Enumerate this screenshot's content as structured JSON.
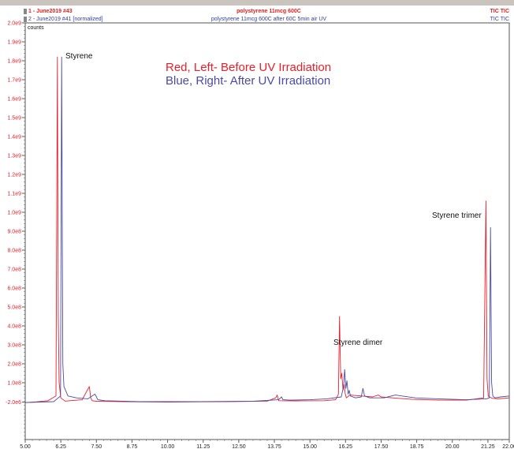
{
  "header": {
    "trace1": {
      "label": "1 - June2019 #43",
      "title": "polystyrene 11mcg 600C",
      "tag": "TIC TIC",
      "color": "#e02020"
    },
    "trace2": {
      "label": "2 - June2019 #41 [normalized]",
      "title": "polystyrene 11mcg 600C after 60C 5min air UV",
      "tag": "TIC TIC",
      "color": "#2c3f9e"
    }
  },
  "chart_data": {
    "type": "line",
    "ylabel": "counts",
    "xlim": [
      5.0,
      22.0
    ],
    "ylim": [
      -200000000,
      2000000000
    ],
    "x_ticks": [
      "5.00",
      "6.25",
      "7.50",
      "8.75",
      "10.00",
      "11.25",
      "12.50",
      "13.75",
      "15.00",
      "16.25",
      "17.50",
      "18.75",
      "20.00",
      "21.25",
      "22.00"
    ],
    "x_tick_values": [
      5.0,
      6.25,
      7.5,
      8.75,
      10.0,
      11.25,
      12.5,
      13.75,
      15.0,
      16.25,
      17.5,
      18.75,
      20.0,
      21.25,
      22.0
    ],
    "y_ticks": [
      "2.0e9",
      "1.9e9",
      "1.8e9",
      "1.7e9",
      "1.6e9",
      "1.5e9",
      "1.4e9",
      "1.3e9",
      "1.2e9",
      "1.1e9",
      "1.0e9",
      "9.0e8",
      "8.0e8",
      "7.0e8",
      "6.0e8",
      "5.0e8",
      "4.0e8",
      "3.0e8",
      "2.0e8",
      "1.0e8",
      "-2.0e6"
    ],
    "y_tick_values": [
      2000000000,
      1900000000,
      1800000000,
      1700000000,
      1600000000,
      1500000000,
      1400000000,
      1300000000,
      1200000000,
      1100000000,
      1000000000,
      900000000,
      800000000,
      700000000,
      600000000,
      500000000,
      400000000,
      300000000,
      200000000,
      100000000,
      -2000000
    ],
    "annotations": {
      "legend_red": "Red, Left- Before UV Irradiation",
      "legend_blue": "Blue, Right- After UV Irradiation",
      "styrene": "Styrene",
      "dimer": "Styrene dimer",
      "trimer": "Styrene trimer"
    },
    "series": [
      {
        "color": "#e8202a",
        "x": [
          5.0,
          5.4,
          5.8,
          6.08,
          6.13,
          6.16,
          6.19,
          6.25,
          6.4,
          7.0,
          7.25,
          7.3,
          7.35,
          7.5,
          8.5,
          10.0,
          12.0,
          13.5,
          13.8,
          13.85,
          13.9,
          14.5,
          15.5,
          15.9,
          16.0,
          16.04,
          16.08,
          16.12,
          16.16,
          16.2,
          16.24,
          16.28,
          16.4,
          16.8,
          17.2,
          17.4,
          17.5,
          17.9,
          18.6,
          19.5,
          20.5,
          21.1,
          21.18,
          21.22,
          21.26,
          21.3,
          21.4,
          21.6,
          22.0
        ],
        "y": [
          -5000000,
          -1000000,
          5000000,
          30000000,
          1820000000,
          450000000,
          100000000,
          20000000,
          3000000,
          10000000,
          80000000,
          20000000,
          5000000,
          2000000,
          0,
          -2000000,
          0,
          3000000,
          20000000,
          35000000,
          5000000,
          4000000,
          5000000,
          10000000,
          40000000,
          450000000,
          120000000,
          150000000,
          60000000,
          90000000,
          40000000,
          20000000,
          35000000,
          30000000,
          25000000,
          35000000,
          25000000,
          20000000,
          12000000,
          8000000,
          8000000,
          20000000,
          1060000000,
          120000000,
          30000000,
          25000000,
          18000000,
          15000000,
          20000000
        ]
      },
      {
        "color": "#4a4aa8",
        "x": [
          5.0,
          5.5,
          6.0,
          6.24,
          6.28,
          6.32,
          6.36,
          6.5,
          6.8,
          7.2,
          7.45,
          7.5,
          7.55,
          7.8,
          9.0,
          11.0,
          13.0,
          13.9,
          14.0,
          14.05,
          14.3,
          15.0,
          15.6,
          16.1,
          16.18,
          16.22,
          16.26,
          16.3,
          16.34,
          16.38,
          16.42,
          16.6,
          16.8,
          16.86,
          16.92,
          17.1,
          17.6,
          18.0,
          18.7,
          19.5,
          20.5,
          21.2,
          21.3,
          21.34,
          21.38,
          21.42,
          21.5,
          21.7,
          22.0
        ],
        "y": [
          -5000000,
          -2000000,
          0,
          30000000,
          1820000000,
          200000000,
          80000000,
          30000000,
          20000000,
          15000000,
          40000000,
          25000000,
          10000000,
          5000000,
          0,
          0,
          2000000,
          10000000,
          25000000,
          10000000,
          8000000,
          10000000,
          15000000,
          25000000,
          80000000,
          170000000,
          70000000,
          110000000,
          40000000,
          60000000,
          30000000,
          20000000,
          25000000,
          70000000,
          30000000,
          20000000,
          20000000,
          35000000,
          20000000,
          15000000,
          10000000,
          15000000,
          20000000,
          920000000,
          100000000,
          30000000,
          20000000,
          25000000,
          30000000
        ]
      }
    ]
  }
}
